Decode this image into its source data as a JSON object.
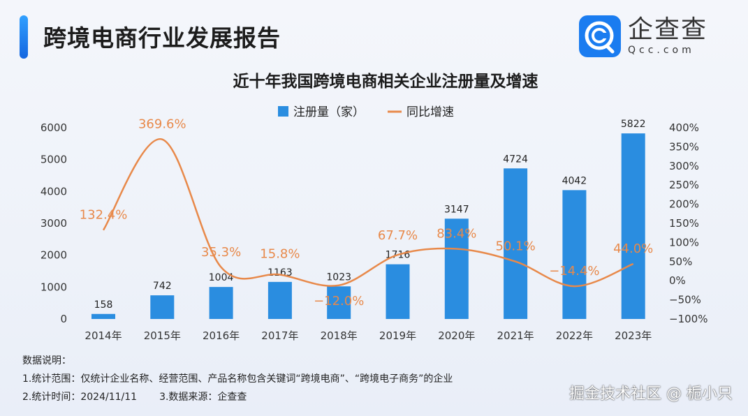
{
  "header": {
    "title": "跨境电商行业发展报告"
  },
  "logo": {
    "name_cn": "企查查",
    "name_en": "Qcc.com",
    "color": "#1a7cf0"
  },
  "chart_data": {
    "type": "bar+line",
    "title": "近十年我国跨境电商相关企业注册量及增速",
    "categories": [
      "2014年",
      "2015年",
      "2016年",
      "2017年",
      "2018年",
      "2019年",
      "2020年",
      "2021年",
      "2022年",
      "2023年"
    ],
    "series": [
      {
        "name": "注册量（家）",
        "type": "bar",
        "axis": "left",
        "color": "#2a8de0",
        "values": [
          158,
          742,
          1004,
          1163,
          1023,
          1716,
          3147,
          4724,
          4042,
          5822
        ],
        "labels": [
          "158",
          "742",
          "1004",
          "1163",
          "1023",
          "1716",
          "3147",
          "4724",
          "4042",
          "5822"
        ]
      },
      {
        "name": "同比增速",
        "type": "line",
        "axis": "right",
        "color": "#e8894a",
        "smooth": true,
        "values": [
          132.4,
          369.6,
          35.3,
          15.8,
          -12.0,
          67.7,
          83.4,
          50.1,
          -14.4,
          44.0
        ],
        "labels": [
          "132.4%",
          "369.6%",
          "35.3%",
          "15.8%",
          "−12.0%",
          "67.7%",
          "83.4%",
          "50.1%",
          "−14.4%",
          "44.0%"
        ]
      }
    ],
    "left_axis": {
      "ylim": [
        0,
        6000
      ],
      "ticks": [
        "0",
        "1000",
        "2000",
        "3000",
        "4000",
        "5000",
        "6000"
      ]
    },
    "right_axis": {
      "ylim": [
        -100,
        400
      ],
      "ticks": [
        "−100%",
        "−50%",
        "0%",
        "50%",
        "100%",
        "150%",
        "200%",
        "250%",
        "300%",
        "350%",
        "400%"
      ]
    },
    "legend": "top-center",
    "grid": false
  },
  "notes": {
    "heading": "数据说明：",
    "line1": "1.统计范围：仅统计企业名称、经营范围、产品名称包含关键词“跨境电商”、“跨境电子商务”的企业",
    "line2a": "2.统计时间：2024/11/11",
    "line2b": "3.数据来源：企查查"
  },
  "watermark": "掘金技术社区 @ 栀小只"
}
